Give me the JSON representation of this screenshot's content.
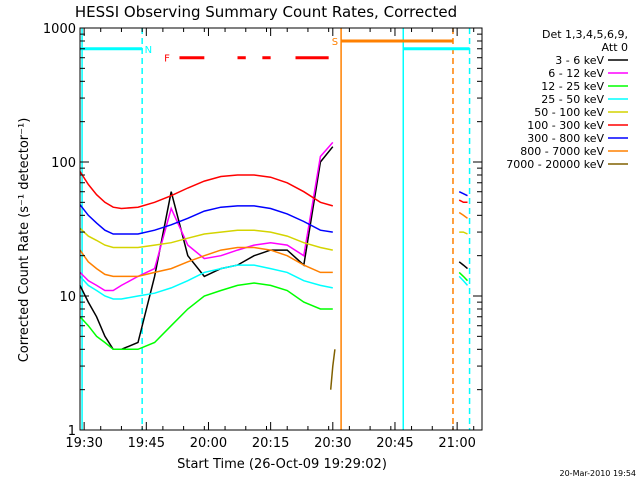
{
  "chart_data": {
    "type": "line",
    "title": "HESSI Observing Summary Count Rates, Corrected",
    "xlabel": "Start Time (26-Oct-09 19:29:02)",
    "ylabel": "Corrected Count Rate (s⁻¹ detector⁻¹)",
    "yscale": "log",
    "ylim": [
      1,
      1000
    ],
    "xlim_minutes": [
      0,
      97
    ],
    "x_ticks": [
      "19:30",
      "19:45",
      "20:00",
      "20:15",
      "20:30",
      "20:45",
      "21:00"
    ],
    "x_tick_minutes": [
      1,
      16,
      31,
      46,
      61,
      76,
      91
    ],
    "y_ticks": [
      "1",
      "10",
      "100",
      "1000"
    ],
    "y_tick_values": [
      1,
      10,
      100,
      1000
    ],
    "legend_header": [
      "Det 1,3,4,5,6,9,",
      "Att 0"
    ],
    "legend": [
      {
        "label": "3 - 6 keV",
        "color": "#000000"
      },
      {
        "label": "6 - 12 keV",
        "color": "#ff00ff"
      },
      {
        "label": "12 - 25 keV",
        "color": "#00ff00"
      },
      {
        "label": "25 - 50 keV",
        "color": "#00ffff"
      },
      {
        "label": "50 - 100 keV",
        "color": "#d4d400"
      },
      {
        "label": "100 - 300 keV",
        "color": "#ff0000"
      },
      {
        "label": "300 - 800 keV",
        "color": "#0000ff"
      },
      {
        "label": "800 - 7000 keV",
        "color": "#ff8000"
      },
      {
        "label": "7000 - 20000 keV",
        "color": "#806000"
      }
    ],
    "series": [
      {
        "name": "3 - 6 keV",
        "color": "#000000",
        "x_minutes": [
          0,
          2,
          4,
          6,
          8,
          10,
          14,
          18,
          22,
          26,
          30,
          34,
          38,
          42,
          46,
          50,
          54,
          58,
          61
        ],
        "y": [
          12,
          9,
          7,
          5,
          4,
          4,
          4.5,
          14,
          60,
          20,
          14,
          16,
          17,
          20,
          22,
          22,
          17,
          100,
          130
        ]
      },
      {
        "name": "6 - 12 keV",
        "color": "#ff00ff",
        "x_minutes": [
          0,
          2,
          4,
          6,
          8,
          10,
          14,
          18,
          22,
          26,
          30,
          34,
          38,
          42,
          46,
          50,
          54,
          58,
          61
        ],
        "y": [
          15,
          13,
          12,
          11,
          11,
          12,
          14,
          16,
          45,
          24,
          19,
          20,
          22,
          24,
          25,
          24,
          20,
          110,
          140
        ]
      },
      {
        "name": "12 - 25 keV",
        "color": "#00ff00",
        "x_minutes": [
          0,
          2,
          4,
          6,
          8,
          10,
          14,
          18,
          22,
          26,
          30,
          34,
          38,
          42,
          46,
          50,
          54,
          58,
          61
        ],
        "y": [
          7,
          6,
          5,
          4.5,
          4,
          4,
          4,
          4.5,
          6,
          8,
          10,
          11,
          12,
          12.5,
          12,
          11,
          9,
          8,
          8
        ]
      },
      {
        "name": "25 - 50 keV",
        "color": "#00ffff",
        "x_minutes": [
          0,
          2,
          4,
          6,
          8,
          10,
          14,
          18,
          22,
          26,
          30,
          34,
          38,
          42,
          46,
          50,
          54,
          58,
          61
        ],
        "y": [
          14,
          12,
          11,
          10,
          9.5,
          9.5,
          10,
          10.5,
          11.5,
          13,
          15,
          16,
          17,
          17,
          16,
          15,
          13,
          12,
          11.5
        ]
      },
      {
        "name": "50 - 100 keV",
        "color": "#d4d400",
        "x_minutes": [
          0,
          2,
          4,
          6,
          8,
          10,
          14,
          18,
          22,
          26,
          30,
          34,
          38,
          42,
          46,
          50,
          54,
          58,
          61
        ],
        "y": [
          32,
          28,
          26,
          24,
          23,
          23,
          23,
          24,
          25,
          27,
          29,
          30,
          31,
          31,
          30,
          28,
          25,
          23,
          22
        ]
      },
      {
        "name": "100 - 300 keV",
        "color": "#ff0000",
        "x_minutes": [
          0,
          2,
          4,
          6,
          8,
          10,
          14,
          18,
          22,
          26,
          30,
          34,
          38,
          42,
          46,
          50,
          54,
          58,
          61
        ],
        "y": [
          85,
          68,
          57,
          50,
          46,
          45,
          46,
          50,
          56,
          64,
          72,
          78,
          80,
          80,
          77,
          70,
          60,
          50,
          47
        ]
      },
      {
        "name": "300 - 800 keV",
        "color": "#0000ff",
        "x_minutes": [
          0,
          2,
          4,
          6,
          8,
          10,
          14,
          18,
          22,
          26,
          30,
          34,
          38,
          42,
          46,
          50,
          54,
          58,
          61
        ],
        "y": [
          48,
          40,
          35,
          31,
          29,
          29,
          29,
          31,
          34,
          38,
          43,
          46,
          47,
          47,
          45,
          41,
          36,
          31,
          30
        ]
      },
      {
        "name": "800 - 7000 keV",
        "color": "#ff8000",
        "x_minutes": [
          0,
          2,
          4,
          6,
          8,
          10,
          14,
          18,
          22,
          26,
          30,
          34,
          38,
          42,
          46,
          50,
          54,
          58,
          61
        ],
        "y": [
          22,
          18,
          16,
          14.5,
          14,
          14,
          14,
          15,
          16,
          18,
          20,
          22,
          23,
          23,
          22,
          20,
          17,
          15,
          15
        ]
      },
      {
        "name": "7000 - 20000 keV",
        "color": "#806000",
        "x_minutes": [
          60.5,
          61,
          61.5
        ],
        "y": [
          2,
          3,
          4
        ]
      }
    ],
    "series_late": [
      {
        "color": "#0000ff",
        "x_minutes": [
          91.5,
          92.5,
          93.5
        ],
        "y": [
          60,
          58,
          56
        ]
      },
      {
        "color": "#ff0000",
        "x_minutes": [
          91.5,
          92.5,
          93.5
        ],
        "y": [
          52,
          50,
          50
        ]
      },
      {
        "color": "#ff8000",
        "x_minutes": [
          91.5,
          92.5,
          93.5
        ],
        "y": [
          42,
          40,
          38
        ]
      },
      {
        "color": "#d4d400",
        "x_minutes": [
          91.5,
          92.5,
          93.5
        ],
        "y": [
          30,
          30,
          29
        ]
      },
      {
        "color": "#000000",
        "x_minutes": [
          91.5,
          92.5,
          93.5
        ],
        "y": [
          18,
          17,
          16
        ]
      },
      {
        "color": "#00ff00",
        "x_minutes": [
          91.5,
          92.5,
          93.5
        ],
        "y": [
          15,
          14,
          13
        ]
      },
      {
        "color": "#00ffff",
        "x_minutes": [
          91.5,
          92.5,
          93.5
        ],
        "y": [
          14,
          13,
          12
        ]
      }
    ],
    "flags": [
      {
        "label": "N",
        "color": "#00ffff",
        "x_minutes": [
          0,
          15
        ],
        "label_x_minutes": 16.5,
        "y": 700
      },
      {
        "label": "N",
        "color": "#00ffff",
        "x_minutes": [
          78,
          94
        ],
        "y": 700
      },
      {
        "label": "F",
        "color": "#ff0000",
        "x_minutes": [
          24,
          30
        ],
        "label_x_minutes": 21,
        "y": 600
      },
      {
        "label": "F",
        "color": "#ff0000",
        "x_minutes": [
          38,
          40
        ],
        "y": 600
      },
      {
        "label": "F",
        "color": "#ff0000",
        "x_minutes": [
          44,
          46
        ],
        "y": 600
      },
      {
        "label": "F",
        "color": "#ff0000",
        "x_minutes": [
          52,
          60
        ],
        "y": 600
      },
      {
        "label": "S",
        "color": "#ff8000",
        "x_minutes": [
          63,
          90
        ],
        "label_x_minutes": 61.5,
        "y": 800
      }
    ],
    "vlines": [
      {
        "x_minutes": 0.5,
        "color": "#00ffff",
        "style": "solid"
      },
      {
        "x_minutes": 15,
        "color": "#00ffff",
        "style": "dashed"
      },
      {
        "x_minutes": 63,
        "color": "#ff8000",
        "style": "solid"
      },
      {
        "x_minutes": 78,
        "color": "#00ffff",
        "style": "solid"
      },
      {
        "x_minutes": 90,
        "color": "#ff8000",
        "style": "dashed"
      },
      {
        "x_minutes": 94,
        "color": "#00ffff",
        "style": "dashed"
      }
    ],
    "footer_date": "20-Mar-2010 19:54"
  }
}
